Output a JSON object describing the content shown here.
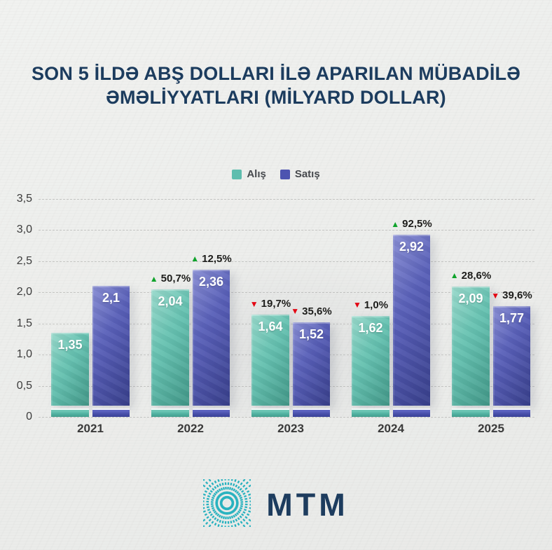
{
  "title": {
    "line1": "SON 5 İLDƏ ABŞ DOLLARI İLƏ APARILAN MÜBADİLƏ",
    "line2": "ƏMƏLİYYATLARI (MİLYARD DOLLAR)"
  },
  "legend": [
    {
      "label": "Alış",
      "color": "#5ebdae"
    },
    {
      "label": "Satış",
      "color": "#4d54b0"
    }
  ],
  "y_axis": {
    "ticks": [
      "3,5",
      "3,0",
      "2,5",
      "2,0",
      "1,5",
      "1,0",
      "0,5",
      "0"
    ],
    "max": 3.5,
    "step": 0.5
  },
  "chart_data": {
    "type": "bar",
    "title": "SON 5 İLDƏ ABŞ DOLLARI İLƏ APARILAN MÜBADİLƏ ƏMƏLİYYATLARI (MİLYARD DOLLAR)",
    "unit": "milyard dollar",
    "categories": [
      "2021",
      "2022",
      "2023",
      "2024",
      "2025"
    ],
    "series": [
      {
        "name": "Alış",
        "color": "#5ebdae",
        "values": [
          1.35,
          2.04,
          1.64,
          1.62,
          2.09
        ],
        "labels": [
          "1,35",
          "2,04",
          "1,64",
          "1,62",
          "2,09"
        ],
        "changes": [
          null,
          {
            "dir": "up",
            "label": "50,7%"
          },
          {
            "dir": "down",
            "label": "19,7%"
          },
          {
            "dir": "down",
            "label": "1,0%"
          },
          {
            "dir": "up",
            "label": "28,6%"
          }
        ]
      },
      {
        "name": "Satış",
        "color": "#4d54b0",
        "values": [
          2.1,
          2.36,
          1.52,
          2.92,
          1.77
        ],
        "labels": [
          "2,1",
          "2,36",
          "1,52",
          "2,92",
          "1,77"
        ],
        "changes": [
          null,
          {
            "dir": "up",
            "label": "12,5%"
          },
          {
            "dir": "down",
            "label": "35,6%"
          },
          {
            "dir": "up",
            "label": "92,5%"
          },
          {
            "dir": "down",
            "label": "39,6%"
          }
        ]
      }
    ],
    "ylim": [
      0,
      3.5
    ],
    "grid": "dashed horizontal",
    "legend_position": "top center"
  },
  "colors": {
    "background": "#edeeec",
    "title_navy": "#1c3c5e",
    "teal": "#5ebdae",
    "purple": "#4d54b0",
    "up_green": "#0fa32b",
    "down_red": "#e30613",
    "logo_teal": "#28b2bf"
  },
  "logo": {
    "text": "MTM"
  }
}
